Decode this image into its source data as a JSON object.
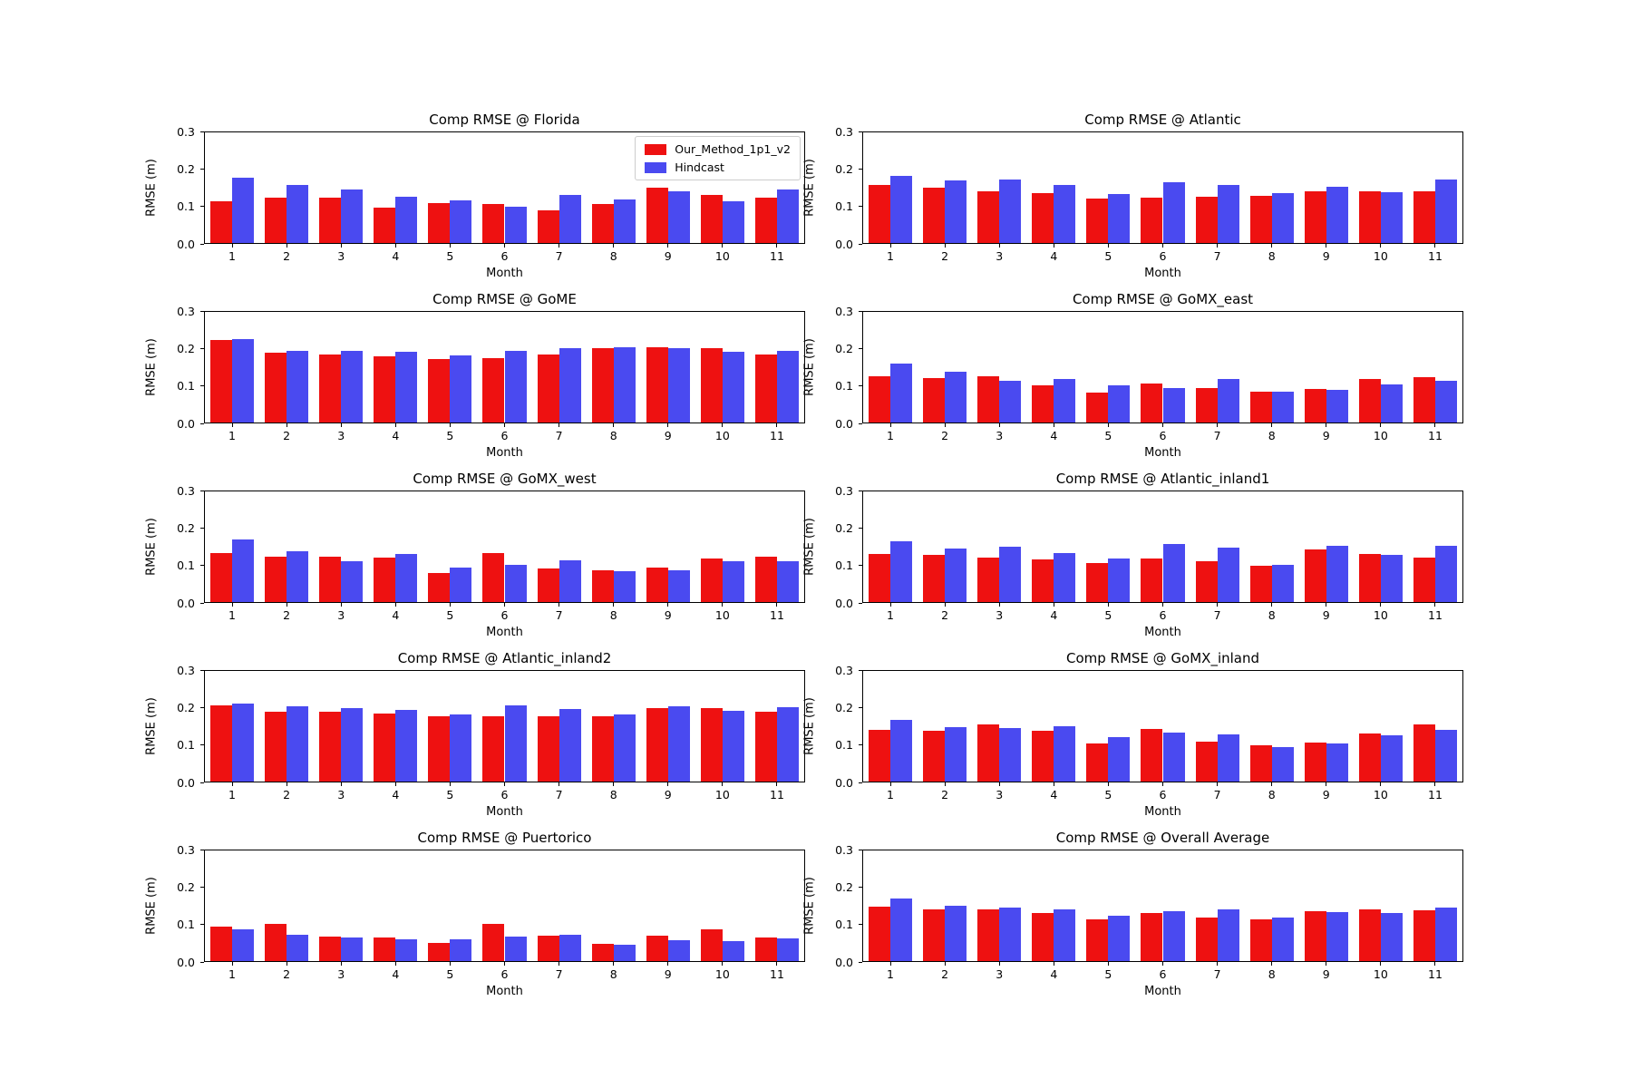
{
  "figure": {
    "background": "#ffffff",
    "series_colors": {
      "our_method": "#ee1111",
      "hindcast": "#4a4af0"
    },
    "legend": {
      "location": "upper right",
      "entries": [
        {
          "label": "Our_Method_1p1_v2",
          "color": "#ee1111"
        },
        {
          "label": "Hindcast",
          "color": "#4a4af0"
        }
      ]
    }
  },
  "chart_data": [
    {
      "id": "florida",
      "type": "bar",
      "title": "Comp RMSE @ Florida",
      "xlabel": "Month",
      "ylabel": "RMSE (m)",
      "ylim": [
        0,
        0.3
      ],
      "grid": false,
      "legend_show": true,
      "legend_location": "upper right",
      "yticks": [
        0.0,
        0.1,
        0.2,
        0.3
      ],
      "ytick_labels": [
        "0.0",
        "0.1",
        "0.2",
        "0.3"
      ],
      "categories": [
        "1",
        "2",
        "3",
        "4",
        "5",
        "6",
        "7",
        "8",
        "9",
        "10",
        "11"
      ],
      "series": [
        {
          "name": "Our_Method_1p1_v2",
          "color": "#ee1111",
          "values": [
            0.113,
            0.123,
            0.123,
            0.097,
            0.108,
            0.106,
            0.088,
            0.107,
            0.151,
            0.131,
            0.122
          ]
        },
        {
          "name": "Hindcast",
          "color": "#4a4af0",
          "values": [
            0.176,
            0.157,
            0.145,
            0.126,
            0.115,
            0.099,
            0.13,
            0.118,
            0.141,
            0.112,
            0.146
          ]
        }
      ]
    },
    {
      "id": "atlantic",
      "type": "bar",
      "title": "Comp RMSE @ Atlantic",
      "xlabel": "Month",
      "ylabel": "RMSE (m)",
      "ylim": [
        0,
        0.3
      ],
      "grid": false,
      "legend_show": false,
      "yticks": [
        0.0,
        0.1,
        0.2,
        0.3
      ],
      "ytick_labels": [
        "0.0",
        "0.1",
        "0.2",
        "0.3"
      ],
      "categories": [
        "1",
        "2",
        "3",
        "4",
        "5",
        "6",
        "7",
        "8",
        "9",
        "10",
        "11"
      ],
      "series": [
        {
          "name": "Our_Method_1p1_v2",
          "color": "#ee1111",
          "values": [
            0.157,
            0.15,
            0.141,
            0.135,
            0.12,
            0.123,
            0.126,
            0.128,
            0.141,
            0.141,
            0.141
          ]
        },
        {
          "name": "Hindcast",
          "color": "#4a4af0",
          "values": [
            0.181,
            0.169,
            0.171,
            0.157,
            0.133,
            0.164,
            0.157,
            0.135,
            0.152,
            0.137,
            0.172
          ]
        }
      ]
    },
    {
      "id": "gome",
      "type": "bar",
      "title": "Comp RMSE @ GoME",
      "xlabel": "Month",
      "ylabel": "RMSE (m)",
      "ylim": [
        0,
        0.3
      ],
      "grid": false,
      "legend_show": false,
      "yticks": [
        0.0,
        0.1,
        0.2,
        0.3
      ],
      "ytick_labels": [
        "0.0",
        "0.1",
        "0.2",
        "0.3"
      ],
      "categories": [
        "1",
        "2",
        "3",
        "4",
        "5",
        "6",
        "7",
        "8",
        "9",
        "10",
        "11"
      ],
      "series": [
        {
          "name": "Our_Method_1p1_v2",
          "color": "#ee1111",
          "values": [
            0.225,
            0.19,
            0.185,
            0.18,
            0.172,
            0.175,
            0.185,
            0.201,
            0.204,
            0.201,
            0.185
          ]
        },
        {
          "name": "Hindcast",
          "color": "#4a4af0",
          "values": [
            0.226,
            0.194,
            0.194,
            0.191,
            0.182,
            0.194,
            0.201,
            0.204,
            0.201,
            0.192,
            0.194
          ]
        }
      ]
    },
    {
      "id": "gomx_east",
      "type": "bar",
      "title": "Comp RMSE @ GoMX_east",
      "xlabel": "Month",
      "ylabel": "RMSE (m)",
      "ylim": [
        0,
        0.3
      ],
      "grid": false,
      "legend_show": false,
      "yticks": [
        0.0,
        0.1,
        0.2,
        0.3
      ],
      "ytick_labels": [
        "0.0",
        "0.1",
        "0.2",
        "0.3"
      ],
      "categories": [
        "1",
        "2",
        "3",
        "4",
        "5",
        "6",
        "7",
        "8",
        "9",
        "10",
        "11"
      ],
      "series": [
        {
          "name": "Our_Method_1p1_v2",
          "color": "#ee1111",
          "values": [
            0.125,
            0.12,
            0.125,
            0.101,
            0.082,
            0.105,
            0.094,
            0.084,
            0.092,
            0.117,
            0.124
          ]
        },
        {
          "name": "Hindcast",
          "color": "#4a4af0",
          "values": [
            0.16,
            0.137,
            0.113,
            0.118,
            0.101,
            0.094,
            0.118,
            0.083,
            0.088,
            0.104,
            0.112
          ]
        }
      ]
    },
    {
      "id": "gomx_west",
      "type": "bar",
      "title": "Comp RMSE @ GoMX_west",
      "xlabel": "Month",
      "ylabel": "RMSE (m)",
      "ylim": [
        0,
        0.3
      ],
      "grid": false,
      "legend_show": false,
      "yticks": [
        0.0,
        0.1,
        0.2,
        0.3
      ],
      "ytick_labels": [
        "0.0",
        "0.1",
        "0.2",
        "0.3"
      ],
      "categories": [
        "1",
        "2",
        "3",
        "4",
        "5",
        "6",
        "7",
        "8",
        "9",
        "10",
        "11"
      ],
      "series": [
        {
          "name": "Our_Method_1p1_v2",
          "color": "#ee1111",
          "values": [
            0.134,
            0.124,
            0.124,
            0.12,
            0.079,
            0.132,
            0.092,
            0.087,
            0.093,
            0.118,
            0.124
          ]
        },
        {
          "name": "Hindcast",
          "color": "#4a4af0",
          "values": [
            0.17,
            0.137,
            0.111,
            0.13,
            0.094,
            0.101,
            0.113,
            0.084,
            0.086,
            0.111,
            0.11
          ]
        }
      ]
    },
    {
      "id": "atlantic_inland1",
      "type": "bar",
      "title": "Comp RMSE @ Atlantic_inland1",
      "xlabel": "Month",
      "ylabel": "RMSE (m)",
      "ylim": [
        0,
        0.3
      ],
      "grid": false,
      "legend_show": false,
      "yticks": [
        0.0,
        0.1,
        0.2,
        0.3
      ],
      "ytick_labels": [
        "0.0",
        "0.1",
        "0.2",
        "0.3"
      ],
      "categories": [
        "1",
        "2",
        "3",
        "4",
        "5",
        "6",
        "7",
        "8",
        "9",
        "10",
        "11"
      ],
      "series": [
        {
          "name": "Our_Method_1p1_v2",
          "color": "#ee1111",
          "values": [
            0.13,
            0.128,
            0.121,
            0.115,
            0.106,
            0.118,
            0.111,
            0.098,
            0.142,
            0.13,
            0.121
          ]
        },
        {
          "name": "Hindcast",
          "color": "#4a4af0",
          "values": [
            0.165,
            0.146,
            0.151,
            0.134,
            0.118,
            0.158,
            0.148,
            0.101,
            0.152,
            0.127,
            0.152
          ]
        }
      ]
    },
    {
      "id": "atlantic_inland2",
      "type": "bar",
      "title": "Comp RMSE @ Atlantic_inland2",
      "xlabel": "Month",
      "ylabel": "RMSE (m)",
      "ylim": [
        0,
        0.3
      ],
      "grid": false,
      "legend_show": false,
      "yticks": [
        0.0,
        0.1,
        0.2,
        0.3
      ],
      "ytick_labels": [
        "0.0",
        "0.1",
        "0.2",
        "0.3"
      ],
      "categories": [
        "1",
        "2",
        "3",
        "4",
        "5",
        "6",
        "7",
        "8",
        "9",
        "10",
        "11"
      ],
      "series": [
        {
          "name": "Our_Method_1p1_v2",
          "color": "#ee1111",
          "values": [
            0.207,
            0.19,
            0.19,
            0.184,
            0.176,
            0.177,
            0.177,
            0.178,
            0.199,
            0.2,
            0.189
          ]
        },
        {
          "name": "Hindcast",
          "color": "#4a4af0",
          "values": [
            0.212,
            0.203,
            0.2,
            0.195,
            0.182,
            0.206,
            0.196,
            0.183,
            0.203,
            0.193,
            0.201
          ]
        }
      ]
    },
    {
      "id": "gomx_inland",
      "type": "bar",
      "title": "Comp RMSE @ GoMX_inland",
      "xlabel": "Month",
      "ylabel": "RMSE (m)",
      "ylim": [
        0,
        0.3
      ],
      "grid": false,
      "legend_show": false,
      "yticks": [
        0.0,
        0.1,
        0.2,
        0.3
      ],
      "ytick_labels": [
        "0.0",
        "0.1",
        "0.2",
        "0.3"
      ],
      "categories": [
        "1",
        "2",
        "3",
        "4",
        "5",
        "6",
        "7",
        "8",
        "9",
        "10",
        "11"
      ],
      "series": [
        {
          "name": "Our_Method_1p1_v2",
          "color": "#ee1111",
          "values": [
            0.14,
            0.137,
            0.155,
            0.137,
            0.103,
            0.143,
            0.108,
            0.098,
            0.106,
            0.131,
            0.155
          ]
        },
        {
          "name": "Hindcast",
          "color": "#4a4af0",
          "values": [
            0.168,
            0.148,
            0.145,
            0.15,
            0.121,
            0.133,
            0.128,
            0.094,
            0.103,
            0.125,
            0.14
          ]
        }
      ]
    },
    {
      "id": "puertorico",
      "type": "bar",
      "title": "Comp RMSE @ Puertorico",
      "xlabel": "Month",
      "ylabel": "RMSE (m)",
      "ylim": [
        0,
        0.3
      ],
      "grid": false,
      "legend_show": false,
      "yticks": [
        0.0,
        0.1,
        0.2,
        0.3
      ],
      "ytick_labels": [
        "0.0",
        "0.1",
        "0.2",
        "0.3"
      ],
      "categories": [
        "1",
        "2",
        "3",
        "4",
        "5",
        "6",
        "7",
        "8",
        "9",
        "10",
        "11"
      ],
      "series": [
        {
          "name": "Our_Method_1p1_v2",
          "color": "#ee1111",
          "values": [
            0.094,
            0.1,
            0.066,
            0.064,
            0.05,
            0.101,
            0.069,
            0.046,
            0.069,
            0.087,
            0.065
          ]
        },
        {
          "name": "Hindcast",
          "color": "#4a4af0",
          "values": [
            0.087,
            0.072,
            0.063,
            0.058,
            0.06,
            0.066,
            0.072,
            0.044,
            0.056,
            0.055,
            0.062
          ]
        }
      ]
    },
    {
      "id": "overall_average",
      "type": "bar",
      "title": "Comp RMSE @ Overall Average",
      "xlabel": "Month",
      "ylabel": "RMSE (m)",
      "ylim": [
        0,
        0.3
      ],
      "grid": false,
      "legend_show": false,
      "yticks": [
        0.0,
        0.1,
        0.2,
        0.3
      ],
      "ytick_labels": [
        "0.0",
        "0.1",
        "0.2",
        "0.3"
      ],
      "categories": [
        "1",
        "2",
        "3",
        "4",
        "5",
        "6",
        "7",
        "8",
        "9",
        "10",
        "11"
      ],
      "series": [
        {
          "name": "Our_Method_1p1_v2",
          "color": "#ee1111",
          "values": [
            0.147,
            0.141,
            0.139,
            0.13,
            0.113,
            0.131,
            0.117,
            0.114,
            0.135,
            0.141,
            0.137
          ]
        },
        {
          "name": "Hindcast",
          "color": "#4a4af0",
          "values": [
            0.17,
            0.149,
            0.146,
            0.141,
            0.124,
            0.136,
            0.139,
            0.117,
            0.134,
            0.13,
            0.145
          ]
        }
      ]
    }
  ]
}
